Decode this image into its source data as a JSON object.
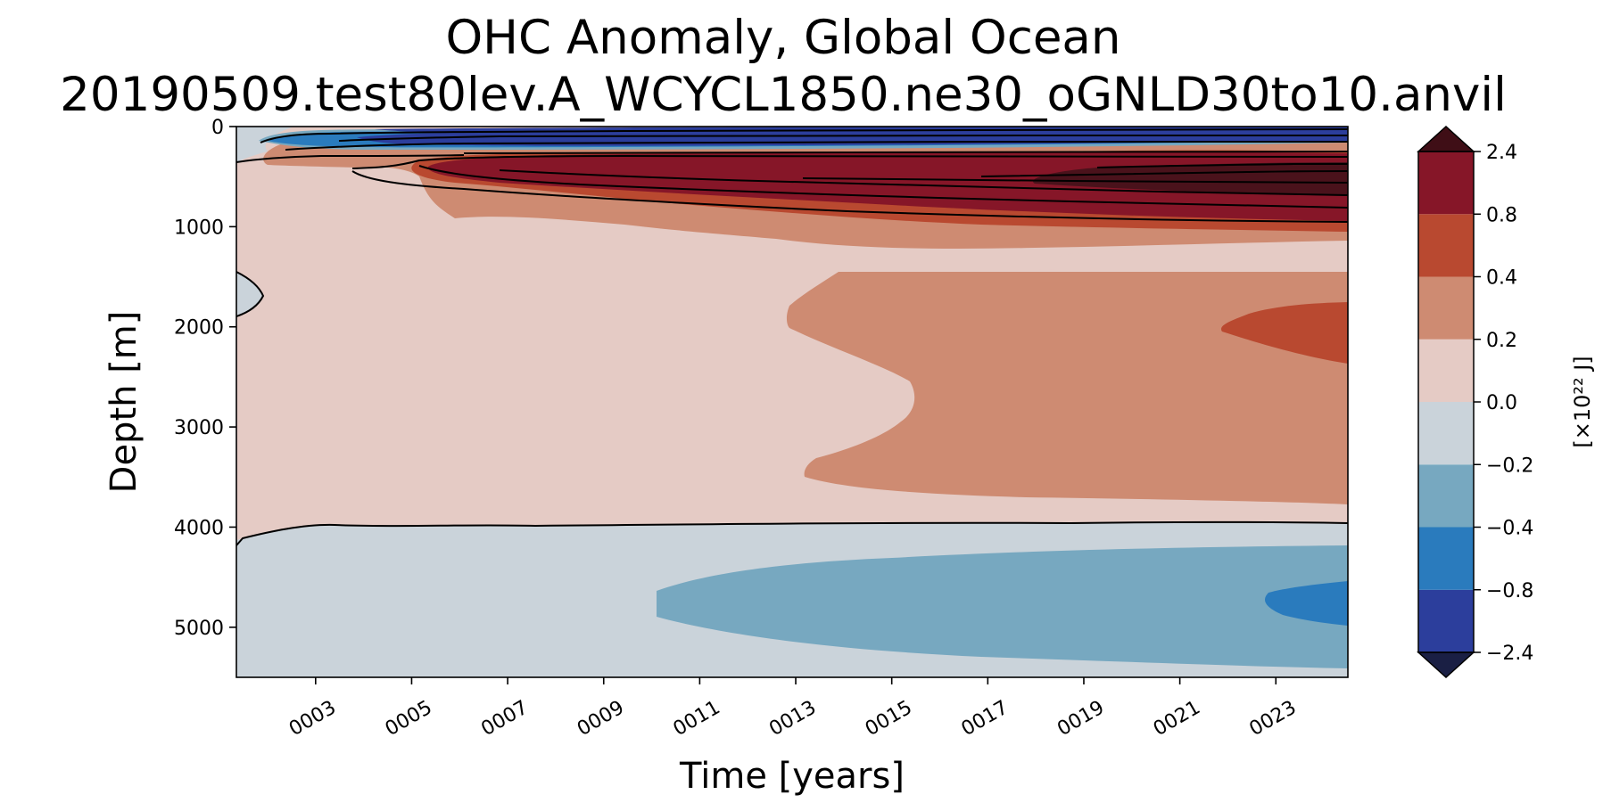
{
  "chart_data": {
    "type": "heatmap",
    "title_lines": [
      "OHC Anomaly, Global Ocean",
      "20190509.test80lev.A_WCYCL1850.ne30_oGNLD30to10.anvil"
    ],
    "xlabel": "Time [years]",
    "ylabel": "Depth [m]",
    "colorbar_label": "[×10²² J]",
    "xlim": [
      1.35,
      24.5
    ],
    "ylim": [
      0,
      5500
    ],
    "y_inverted": true,
    "grid": false,
    "x_ticks": [
      {
        "value": 3,
        "label": "0003"
      },
      {
        "value": 5,
        "label": "0005"
      },
      {
        "value": 7,
        "label": "0007"
      },
      {
        "value": 9,
        "label": "0009"
      },
      {
        "value": 11,
        "label": "0011"
      },
      {
        "value": 13,
        "label": "0013"
      },
      {
        "value": 15,
        "label": "0015"
      },
      {
        "value": 17,
        "label": "0017"
      },
      {
        "value": 19,
        "label": "0019"
      },
      {
        "value": 21,
        "label": "0021"
      },
      {
        "value": 23,
        "label": "0023"
      }
    ],
    "y_ticks": [
      {
        "value": 0,
        "label": "0"
      },
      {
        "value": 1000,
        "label": "1000"
      },
      {
        "value": 2000,
        "label": "2000"
      },
      {
        "value": 3000,
        "label": "3000"
      },
      {
        "value": 4000,
        "label": "4000"
      },
      {
        "value": 5000,
        "label": "5000"
      }
    ],
    "levels": [
      -2.4,
      -0.8,
      -0.4,
      -0.2,
      0.0,
      0.2,
      0.4,
      0.8,
      2.4
    ],
    "level_labels": [
      "−2.4",
      "−0.8",
      "−0.4",
      "−0.2",
      "0.0",
      "0.2",
      "0.4",
      "0.8",
      "2.4"
    ],
    "colors": [
      "#2c3e9c",
      "#2a7bbd",
      "#77a8c0",
      "#cad3da",
      "#e5cbc5",
      "#ce8b72",
      "#b94930",
      "#861628"
    ],
    "extend_low_color": "#1a1f44",
    "extend_high_color": "#3f0e16",
    "regions": [
      {
        "level_bin": "0.0 to 0.2",
        "approx_extent": "time 0001–0024, depth ~300–4200 m (background)"
      },
      {
        "level_bin": "-0.2 to 0.0",
        "approx_extent": "abyss below ~4050 m, all times; near-surface early years"
      },
      {
        "level_bin": "-0.4 to -0.2",
        "approx_extent": "time 0010–0024, depth ~4300–5400 m"
      },
      {
        "level_bin": "-0.8 to -0.4",
        "approx_extent": "time 0022–0024, depth ~4600–5000 m; surface year 0002–0003"
      },
      {
        "level_bin": "< -0.8",
        "approx_extent": "time 0004–0024, depth 0–300 m"
      },
      {
        "level_bin": "0.2 to 0.4",
        "approx_extent": "time 0013–0024, depth ~1300–3800 m; upper ocean 0003–0024, 400–1100 m"
      },
      {
        "level_bin": "0.4 to 0.8",
        "approx_extent": "time 0021–0024, depth ~1800–2400 m; thin band 900–1000 m"
      },
      {
        "level_bin": "0.8 to 2.4",
        "approx_extent": "time 0004–0024, depth ~350–900 m"
      },
      {
        "level_bin": "> 2.4",
        "approx_extent": "time 0017–0024, depth ~550–700 m"
      }
    ]
  }
}
